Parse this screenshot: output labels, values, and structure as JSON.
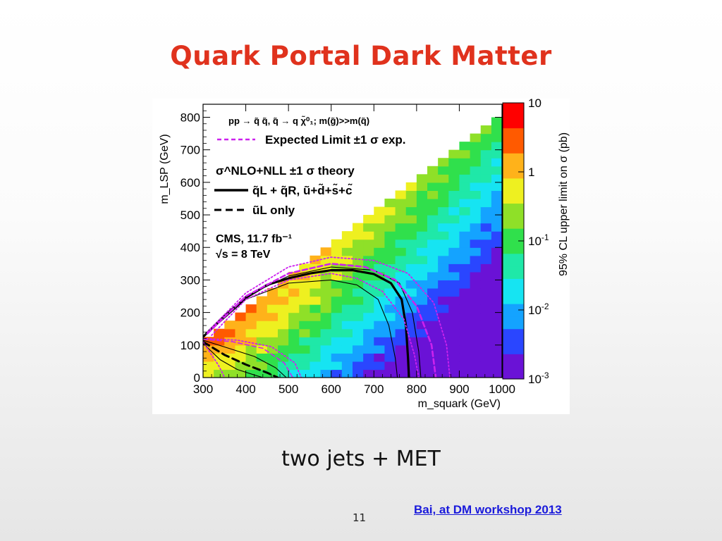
{
  "slide": {
    "title": "Quark Portal Dark Matter",
    "caption": "two jets + MET",
    "page_number": "11",
    "credit": "Bai, at DM workshop 2013"
  },
  "chart_data": {
    "type": "heatmap",
    "title": "",
    "xlabel": "m_squark (GeV)",
    "ylabel": "m_LSP (GeV)",
    "zlabel": "95% CL upper limit on σ (pb)",
    "xlim": [
      300,
      1000
    ],
    "ylim": [
      0,
      840
    ],
    "zlim": [
      0.001,
      10
    ],
    "zscale": "log",
    "x_ticks": [
      "300",
      "400",
      "500",
      "600",
      "700",
      "800",
      "900",
      "1000"
    ],
    "y_ticks": [
      "0",
      "100",
      "200",
      "300",
      "400",
      "500",
      "600",
      "700",
      "800"
    ],
    "z_ticks": [
      {
        "value": 10,
        "base": "10",
        "exp": ""
      },
      {
        "value": 1,
        "base": "1",
        "exp": ""
      },
      {
        "value": 0.1,
        "base": "10",
        "exp": "-1"
      },
      {
        "value": 0.01,
        "base": "10",
        "exp": "-2"
      },
      {
        "value": 0.001,
        "base": "10",
        "exp": "-3"
      }
    ],
    "colorscale": [
      "#6a12d6",
      "#2a46ff",
      "#14a3ff",
      "#16e4f2",
      "#1fe8a8",
      "#30e04c",
      "#8fe028",
      "#eef020",
      "#ffb21a",
      "#ff5a00",
      "#ff0000"
    ],
    "legend": {
      "process": "pp → q̃ q̃, q̃ → q χ̃⁰₁; m(g̃)>>m(q̃)",
      "expected": "Expected Limit ±1 σ exp.",
      "theory": "σ^NLO+NLL ±1 σ theory",
      "full_set": "q̃L + q̃R, ũ+d̃+s̃+c̃",
      "single": "ũL only",
      "experiment": "CMS, 11.7 fb⁻¹",
      "energy": "√s = 8 TeV"
    },
    "series": [
      {
        "name": "q̃L + q̃R, ũ+d̃+s̃+c̃",
        "style": "solid-thick",
        "x": [
          300,
          350,
          400,
          450,
          500,
          550,
          600,
          650,
          700,
          740,
          765,
          775,
          780,
          782
        ],
        "y": [
          125,
          190,
          245,
          285,
          305,
          320,
          330,
          330,
          318,
          290,
          240,
          160,
          60,
          0
        ]
      },
      {
        "name": "theory +1σ",
        "style": "solid-thin",
        "x": [
          300,
          400,
          500,
          600,
          700,
          760,
          790,
          805,
          810
        ],
        "y": [
          125,
          250,
          312,
          340,
          330,
          290,
          200,
          80,
          0
        ]
      },
      {
        "name": "theory -1σ",
        "style": "solid-thin",
        "x": [
          300,
          400,
          500,
          600,
          660,
          710,
          735,
          750,
          755
        ],
        "y": [
          125,
          240,
          290,
          300,
          285,
          240,
          160,
          60,
          0
        ]
      },
      {
        "name": "Expected Limit",
        "style": "dashed-magenta",
        "x": [
          310,
          400,
          500,
          600,
          680,
          750,
          800,
          835,
          845
        ],
        "y": [
          135,
          250,
          320,
          350,
          340,
          300,
          220,
          100,
          0
        ]
      },
      {
        "name": "expected +1σ",
        "style": "dotted-magenta",
        "x": [
          310,
          400,
          500,
          600,
          700,
          780,
          840,
          870,
          878
        ],
        "y": [
          140,
          260,
          340,
          370,
          360,
          320,
          230,
          100,
          0
        ]
      },
      {
        "name": "expected -1σ",
        "style": "dotted-magenta",
        "x": [
          320,
          400,
          500,
          600,
          660,
          720,
          770,
          795,
          805
        ],
        "y": [
          130,
          240,
          300,
          320,
          305,
          265,
          180,
          70,
          0
        ]
      },
      {
        "name": "ũL only",
        "style": "dashed-thick",
        "x": [
          300,
          350,
          400,
          450,
          475
        ],
        "y": [
          110,
          70,
          40,
          15,
          0
        ]
      },
      {
        "name": "ũL only theory +1σ",
        "style": "solid-thin",
        "x": [
          300,
          360,
          420,
          470,
          495
        ],
        "y": [
          115,
          90,
          65,
          30,
          0
        ]
      },
      {
        "name": "ũL only theory -1σ",
        "style": "solid-thin",
        "x": [
          300,
          340,
          380,
          420,
          440
        ],
        "y": [
          105,
          55,
          25,
          8,
          0
        ]
      },
      {
        "name": "ũL only expected",
        "style": "dashed-magenta-thin",
        "x": [
          300,
          370,
          440,
          490,
          510
        ],
        "y": [
          118,
          110,
          90,
          45,
          0
        ]
      },
      {
        "name": "ũL only expected ±1σ",
        "style": "dotted-magenta",
        "x": [
          300,
          380,
          460,
          515,
          530
        ],
        "y": [
          120,
          115,
          95,
          45,
          0
        ]
      },
      {
        "name": "ũL only expected -1σ",
        "style": "dotted-magenta",
        "x": [
          300,
          320,
          335,
          345,
          350
        ],
        "y": [
          110,
          70,
          40,
          15,
          0
        ]
      }
    ],
    "legend_colors": {
      "expected": "#cc22ee",
      "theory": "#000000"
    },
    "background_color": "#ffffff"
  },
  "colors": {
    "title": "#e0321d",
    "link": "#1a1adb"
  }
}
